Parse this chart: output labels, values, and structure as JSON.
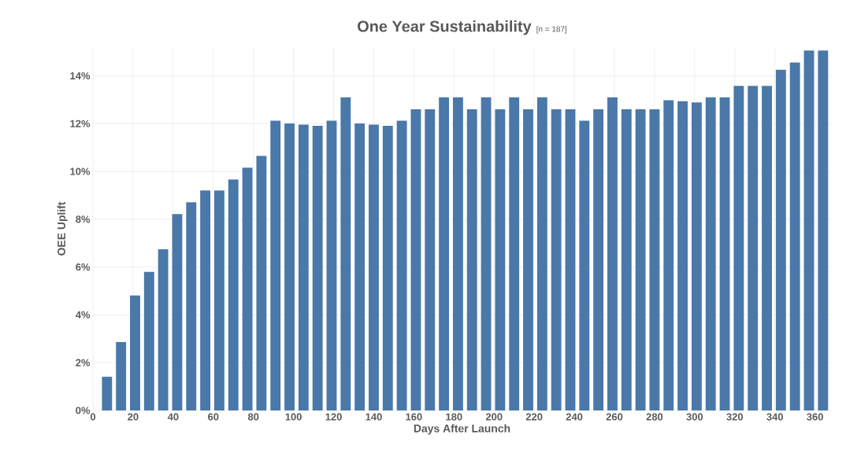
{
  "chart_data": {
    "type": "bar",
    "title": "One Year Sustainability",
    "subtitle": "[n = 187]",
    "xlabel": "Days After Launch",
    "ylabel": "OEE Uplift",
    "x": [
      7,
      14,
      21,
      28,
      35,
      42,
      49,
      56,
      63,
      70,
      77,
      84,
      91,
      98,
      105,
      112,
      119,
      126,
      133,
      140,
      147,
      154,
      161,
      168,
      175,
      182,
      189,
      196,
      203,
      210,
      217,
      224,
      231,
      238,
      245,
      252,
      259,
      266,
      273,
      280,
      287,
      294,
      301,
      308,
      315,
      322,
      329,
      336,
      343,
      350,
      357,
      364
    ],
    "values": [
      1.41,
      2.86,
      4.81,
      5.8,
      6.74,
      8.22,
      8.71,
      9.2,
      9.2,
      9.66,
      10.16,
      10.65,
      12.12,
      12.01,
      11.96,
      11.91,
      12.12,
      13.1,
      12.01,
      11.96,
      11.91,
      12.12,
      12.6,
      12.6,
      13.1,
      13.1,
      12.6,
      13.1,
      12.6,
      13.1,
      12.6,
      13.1,
      12.6,
      12.6,
      12.12,
      12.6,
      13.1,
      12.6,
      12.6,
      12.6,
      12.98,
      12.94,
      12.89,
      13.1,
      13.1,
      13.58,
      13.58,
      13.58,
      14.25,
      14.56,
      15.06,
      15.06
    ],
    "color": "#4a78a8",
    "xlim": [
      0,
      368
    ],
    "xticks": [
      0,
      20,
      40,
      60,
      80,
      100,
      120,
      140,
      160,
      180,
      200,
      220,
      240,
      260,
      280,
      300,
      320,
      340,
      360
    ],
    "ylim": [
      0,
      15.2
    ],
    "yticks": [
      {
        "value": 0,
        "label": "0%"
      },
      {
        "value": 2,
        "label": "2%"
      },
      {
        "value": 4,
        "label": "4%"
      },
      {
        "value": 6,
        "label": "6%"
      },
      {
        "value": 8,
        "label": "8%"
      },
      {
        "value": 10,
        "label": "10%"
      },
      {
        "value": 12,
        "label": "12%"
      },
      {
        "value": 14,
        "label": "14%"
      }
    ],
    "grid": true
  }
}
